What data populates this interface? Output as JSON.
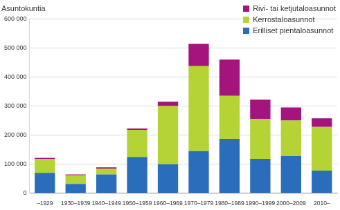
{
  "chart_data": {
    "type": "bar",
    "ylabel": "Asuntokuntia",
    "categories": [
      "–1929",
      "1930–1939",
      "1940–1949",
      "1950–1959",
      "1960–1969",
      "1970–1979",
      "1980–1989",
      "1990–1999",
      "2000–2009",
      "2010–"
    ],
    "series": [
      {
        "name": "Erilliset pientaloasunnot",
        "color": "#2a6ebb",
        "values": [
          70000,
          32000,
          65000,
          125000,
          100000,
          145000,
          187000,
          118000,
          128000,
          78000
        ]
      },
      {
        "name": "Kerrostaloasunnot",
        "color": "#b5d334",
        "values": [
          48000,
          30000,
          20000,
          93000,
          200000,
          292000,
          148000,
          138000,
          122000,
          150000
        ]
      },
      {
        "name": "Rivi- tai ketjutaloasunnot",
        "color": "#a5137c",
        "values": [
          4000,
          3000,
          4000,
          5000,
          15000,
          77000,
          125000,
          66000,
          45000,
          30000
        ]
      }
    ],
    "ylim": [
      0,
      600000
    ],
    "yticks": [
      0,
      {
        "value": 100000,
        "label": "100 000"
      },
      {
        "value": 200000,
        "label": "200 000"
      },
      {
        "value": 300000,
        "label": "300 000"
      },
      {
        "value": 400000,
        "label": "400 000"
      },
      {
        "value": 500000,
        "label": "500 000"
      },
      {
        "value": 600000,
        "label": "600 000"
      }
    ],
    "grid": true,
    "stacked": true,
    "legend": "upper right"
  }
}
